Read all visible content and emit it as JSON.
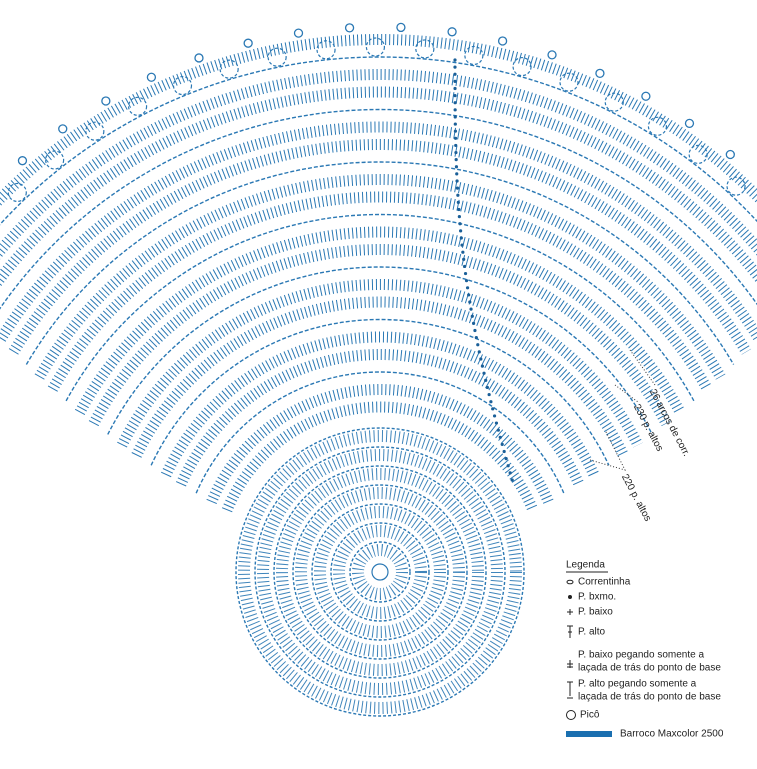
{
  "annotations": [
    "26 arcos de corr.",
    "230 p. altos",
    "220 p. altos"
  ],
  "legend": {
    "title": "Legenda",
    "items": [
      {
        "lines": [
          "Correntinha"
        ]
      },
      {
        "lines": [
          "P. bxmo."
        ]
      },
      {
        "lines": [
          "P. baixo"
        ]
      },
      {
        "lines": [
          "P. alto"
        ]
      },
      {
        "lines": [
          "P. baixo pegando somente a",
          "laçada de trás do ponto de base"
        ]
      },
      {
        "lines": [
          "P. alto pegando somente a",
          "laçada de trás do ponto de base"
        ]
      },
      {
        "lines": [
          "Picô"
        ]
      }
    ],
    "yarn": "Barroco Maxcolor 2500"
  }
}
